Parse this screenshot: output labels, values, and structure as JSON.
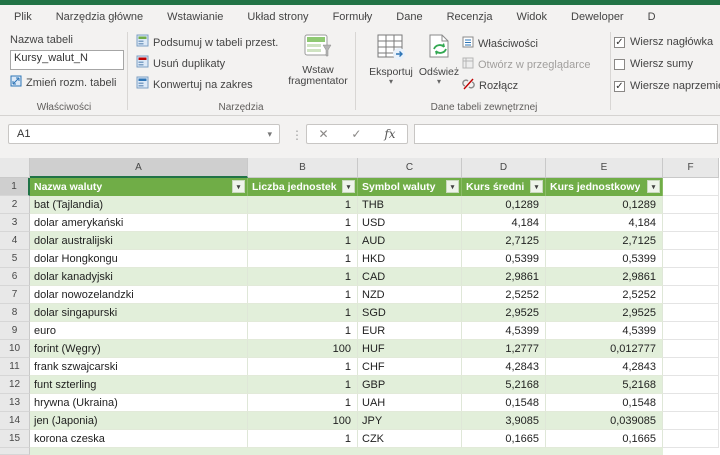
{
  "app": {
    "accent_color": "#217346",
    "header_fill": "#70ad47",
    "band_fill": "#e2efda"
  },
  "icons": {
    "dropdown": "▾",
    "check": "✓",
    "cancel": "✕",
    "dots": "⋮"
  },
  "ribbon": {
    "tabs": [
      "Plik",
      "Narzędzia główne",
      "Wstawianie",
      "Układ strony",
      "Formuły",
      "Dane",
      "Recenzja",
      "Widok",
      "Deweloper",
      "D"
    ],
    "properties_group": {
      "group_label": "Właściwości",
      "table_name_label": "Nazwa tabeli",
      "table_name_value": "Kursy_walut_N",
      "resize_button": "Zmień rozm. tabeli"
    },
    "tools_group": {
      "group_label": "Narzędzia",
      "items": [
        "Podsumuj w tabeli przest.",
        "Usuń duplikaty",
        "Konwertuj na zakres"
      ],
      "slicer_button": "Wstaw fragmentator"
    },
    "external_group": {
      "group_label": "Dane tabeli zewnętrznej",
      "export_button": "Eksportuj",
      "refresh_button": "Odśwież",
      "items": [
        {
          "label": "Właściwości",
          "disabled": false
        },
        {
          "label": "Otwórz w przeglądarce",
          "disabled": true
        },
        {
          "label": "Rozłącz",
          "disabled": false
        }
      ]
    },
    "options_group": {
      "checkboxes": [
        {
          "label": "Wiersz nagłówka",
          "checked": true
        },
        {
          "label": "Wiersz sumy",
          "checked": false
        },
        {
          "label": "Wiersze naprzemienne",
          "checked": true
        }
      ]
    }
  },
  "formula_bar": {
    "name_box": "A1",
    "formula_value": ""
  },
  "sheet": {
    "column_letters": [
      "A",
      "B",
      "C",
      "D",
      "E",
      "F"
    ],
    "selected_cell": "A1",
    "table": {
      "headers": [
        "Nazwa waluty",
        "Liczba jednostek",
        "Symbol waluty",
        "Kurs średni",
        "Kurs jednostkowy"
      ],
      "rows": [
        {
          "row": 2,
          "name": "bat (Tajlandia)",
          "units": "1",
          "symbol": "THB",
          "avg": "0,1289",
          "unit_rate": "0,1289"
        },
        {
          "row": 3,
          "name": "dolar amerykański",
          "units": "1",
          "symbol": "USD",
          "avg": "4,184",
          "unit_rate": "4,184"
        },
        {
          "row": 4,
          "name": "dolar australijski",
          "units": "1",
          "symbol": "AUD",
          "avg": "2,7125",
          "unit_rate": "2,7125"
        },
        {
          "row": 5,
          "name": "dolar Hongkongu",
          "units": "1",
          "symbol": "HKD",
          "avg": "0,5399",
          "unit_rate": "0,5399"
        },
        {
          "row": 6,
          "name": "dolar kanadyjski",
          "units": "1",
          "symbol": "CAD",
          "avg": "2,9861",
          "unit_rate": "2,9861"
        },
        {
          "row": 7,
          "name": "dolar nowozelandzki",
          "units": "1",
          "symbol": "NZD",
          "avg": "2,5252",
          "unit_rate": "2,5252"
        },
        {
          "row": 8,
          "name": "dolar singapurski",
          "units": "1",
          "symbol": "SGD",
          "avg": "2,9525",
          "unit_rate": "2,9525"
        },
        {
          "row": 9,
          "name": "euro",
          "units": "1",
          "symbol": "EUR",
          "avg": "4,5399",
          "unit_rate": "4,5399"
        },
        {
          "row": 10,
          "name": "forint (Węgry)",
          "units": "100",
          "symbol": "HUF",
          "avg": "1,2777",
          "unit_rate": "0,012777"
        },
        {
          "row": 11,
          "name": "frank szwajcarski",
          "units": "1",
          "symbol": "CHF",
          "avg": "4,2843",
          "unit_rate": "4,2843"
        },
        {
          "row": 12,
          "name": "funt szterling",
          "units": "1",
          "symbol": "GBP",
          "avg": "5,2168",
          "unit_rate": "5,2168"
        },
        {
          "row": 13,
          "name": "hrywna (Ukraina)",
          "units": "1",
          "symbol": "UAH",
          "avg": "0,1548",
          "unit_rate": "0,1548"
        },
        {
          "row": 14,
          "name": "jen (Japonia)",
          "units": "100",
          "symbol": "JPY",
          "avg": "3,9085",
          "unit_rate": "0,039085"
        },
        {
          "row": 15,
          "name": "korona czeska",
          "units": "1",
          "symbol": "CZK",
          "avg": "0,1665",
          "unit_rate": "0,1665"
        }
      ]
    }
  }
}
